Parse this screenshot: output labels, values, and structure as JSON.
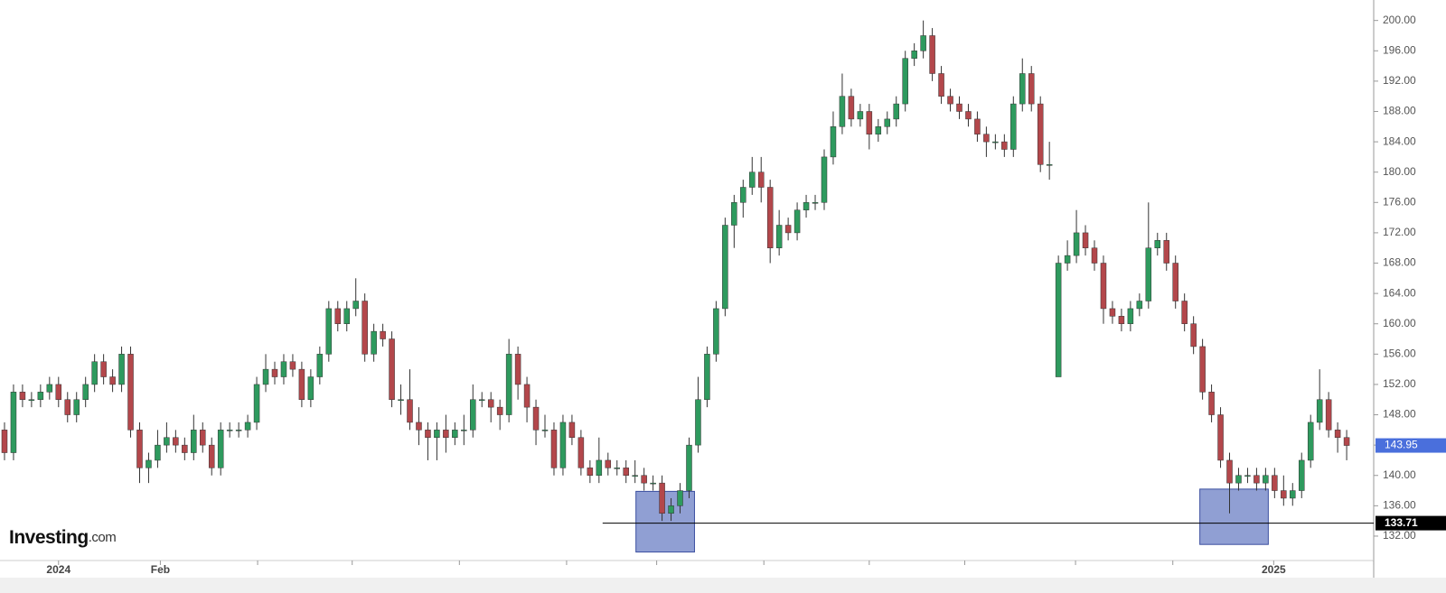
{
  "chart_data": {
    "type": "candlestick",
    "up_color": "#2e9a5e",
    "down_color": "#b3474b",
    "xlim": [
      0,
      152
    ],
    "xticks": [
      {
        "value": 6.5,
        "label": "2024"
      },
      {
        "value": 17.8,
        "label": "Feb"
      },
      {
        "value": 28.6,
        "label": null
      },
      {
        "value": 39.1,
        "label": null
      },
      {
        "value": 51,
        "label": null
      },
      {
        "value": 62.9,
        "label": null
      },
      {
        "value": 72.9,
        "label": null
      },
      {
        "value": 84.8,
        "label": null
      },
      {
        "value": 96.5,
        "label": null
      },
      {
        "value": 107.1,
        "label": null
      },
      {
        "value": 119.4,
        "label": null
      },
      {
        "value": 130.2,
        "label": null
      },
      {
        "value": 141.4,
        "label": "2025"
      },
      {
        "value": 152.5,
        "label": null
      }
    ],
    "ylim": [
      128.9,
      202.7
    ],
    "yticks": [
      {
        "value": 132,
        "label": "132.00"
      },
      {
        "value": 136,
        "label": "136.00"
      },
      {
        "value": 140,
        "label": "140.00"
      },
      {
        "value": 144,
        "label": "144.00"
      },
      {
        "value": 148,
        "label": "148.00"
      },
      {
        "value": 152,
        "label": "152.00"
      },
      {
        "value": 156,
        "label": "156.00"
      },
      {
        "value": 160,
        "label": "160.00"
      },
      {
        "value": 164,
        "label": "164.00"
      },
      {
        "value": 168,
        "label": "168.00"
      },
      {
        "value": 172,
        "label": "172.00"
      },
      {
        "value": 176,
        "label": "176.00"
      },
      {
        "value": 180,
        "label": "180.00"
      },
      {
        "value": 184,
        "label": "184.00"
      },
      {
        "value": 188,
        "label": "188.00"
      },
      {
        "value": 192,
        "label": "192.00"
      },
      {
        "value": 196,
        "label": "196.00"
      },
      {
        "value": 200,
        "label": "200.00"
      }
    ],
    "open": [
      146,
      143,
      151,
      150,
      150,
      151,
      152,
      150,
      148,
      150,
      152,
      155,
      153,
      152,
      156,
      146,
      141,
      142,
      144,
      145,
      144,
      143,
      146,
      144,
      141,
      146,
      146,
      146,
      147,
      152,
      154,
      153,
      155,
      154,
      150,
      153,
      156,
      162,
      160,
      162,
      163,
      156,
      159,
      158,
      150,
      150,
      147,
      146,
      145,
      146,
      145,
      146,
      146,
      150,
      150,
      149,
      148,
      156,
      152,
      149,
      146,
      146,
      141,
      147,
      145,
      141,
      140,
      142,
      141,
      141,
      140,
      140,
      139,
      139,
      135,
      136,
      138,
      144,
      150,
      156,
      162,
      173,
      176,
      178,
      180,
      178,
      170,
      173,
      172,
      175,
      176,
      176,
      182,
      186,
      190,
      187,
      188,
      185,
      186,
      187,
      189,
      195,
      196,
      198,
      193,
      190,
      189,
      188,
      187,
      185,
      184,
      184,
      183,
      189,
      193,
      189,
      181,
      153,
      168,
      169,
      172,
      170,
      168,
      162,
      161,
      160,
      162,
      163,
      170,
      171,
      168,
      163,
      160,
      157,
      151,
      148,
      142,
      139,
      140,
      140,
      139,
      140,
      138,
      137,
      138,
      142,
      147,
      150,
      146,
      145
    ],
    "high": [
      147,
      152,
      152,
      151,
      152,
      153,
      153,
      151,
      151,
      153,
      156,
      156,
      154,
      157,
      157,
      147,
      143,
      146,
      147,
      146,
      145,
      148,
      147,
      145,
      147,
      147,
      147,
      148,
      153,
      156,
      155,
      156,
      156,
      155,
      154,
      157,
      163,
      163,
      163,
      166,
      164,
      160,
      160,
      159,
      152,
      154,
      149,
      147,
      147,
      148,
      147,
      148,
      152,
      151,
      151,
      150,
      158,
      157,
      153,
      150,
      148,
      147,
      148,
      148,
      146,
      142,
      145,
      143,
      142,
      142,
      142,
      141,
      140,
      140,
      137,
      139,
      145,
      153,
      157,
      163,
      174,
      177,
      179,
      182,
      182,
      179,
      175,
      174,
      176,
      177,
      177,
      183,
      188,
      193,
      191,
      189,
      189,
      187,
      188,
      190,
      196,
      197,
      200,
      199,
      194,
      191,
      190,
      189,
      188,
      186,
      185,
      185,
      190,
      195,
      194,
      190,
      184,
      169,
      171,
      175,
      173,
      171,
      169,
      163,
      162,
      163,
      164,
      176,
      172,
      172,
      169,
      164,
      161,
      158,
      152,
      149,
      143,
      141,
      141,
      141,
      141,
      141,
      140,
      139,
      143,
      148,
      154,
      151,
      147,
      146
    ],
    "low": [
      142,
      142,
      149,
      149,
      149,
      150,
      149,
      147,
      147,
      149,
      151,
      152,
      151,
      151,
      145,
      139,
      139,
      141,
      143,
      143,
      142,
      142,
      143,
      140,
      140,
      145,
      145,
      145,
      146,
      151,
      152,
      152,
      153,
      149,
      149,
      152,
      155,
      159,
      159,
      161,
      155,
      155,
      157,
      149,
      148,
      146,
      144,
      142,
      142,
      143,
      144,
      144,
      145,
      149,
      147,
      146,
      147,
      150,
      147,
      144,
      145,
      140,
      140,
      144,
      140,
      139,
      139,
      140,
      140,
      139,
      139,
      138,
      138,
      134,
      134,
      135,
      137,
      143,
      149,
      155,
      161,
      170,
      174,
      177,
      176,
      168,
      169,
      171,
      171,
      174,
      175,
      175,
      181,
      185,
      186,
      186,
      183,
      184,
      185,
      186,
      188,
      194,
      195,
      192,
      189,
      188,
      187,
      186,
      184,
      182,
      183,
      182,
      182,
      188,
      188,
      180,
      179,
      153,
      167,
      168,
      169,
      167,
      160,
      160,
      159,
      159,
      161,
      162,
      169,
      167,
      162,
      159,
      156,
      150,
      147,
      141,
      135,
      138,
      139,
      138,
      138,
      137,
      136,
      136,
      137,
      141,
      146,
      145,
      143,
      142
    ],
    "close": [
      143,
      151,
      150,
      150,
      151,
      152,
      150,
      148,
      150,
      152,
      155,
      153,
      152,
      156,
      146,
      141,
      142,
      144,
      145,
      144,
      143,
      146,
      144,
      141,
      146,
      146,
      146,
      147,
      152,
      154,
      153,
      155,
      154,
      150,
      153,
      156,
      162,
      160,
      162,
      163,
      156,
      159,
      158,
      150,
      150,
      147,
      146,
      145,
      146,
      145,
      146,
      146,
      150,
      150,
      149,
      148,
      156,
      152,
      149,
      146,
      146,
      141,
      147,
      145,
      141,
      140,
      142,
      141,
      141,
      140,
      140,
      139,
      139,
      135,
      136,
      138,
      144,
      150,
      156,
      162,
      173,
      176,
      178,
      180,
      178,
      170,
      173,
      172,
      175,
      176,
      176,
      182,
      186,
      190,
      187,
      188,
      185,
      186,
      187,
      189,
      195,
      196,
      198,
      193,
      190,
      189,
      188,
      187,
      185,
      184,
      184,
      183,
      189,
      193,
      189,
      181,
      181,
      168,
      169,
      172,
      170,
      168,
      162,
      161,
      160,
      162,
      163,
      170,
      171,
      168,
      163,
      160,
      157,
      151,
      148,
      142,
      139,
      140,
      140,
      139,
      140,
      138,
      137,
      138,
      142,
      147,
      150,
      146,
      145,
      143.95
    ],
    "last_price": 143.95,
    "last_price_color": "#4a6fdc",
    "level": {
      "value": 133.71,
      "x_start": 66.9,
      "color": "#000000"
    },
    "boxes": [
      {
        "x": [
          70.6,
          77.1
        ],
        "y": [
          129.9,
          137.9
        ]
      },
      {
        "x": [
          133.2,
          140.8
        ],
        "y": [
          130.9,
          138.2
        ]
      }
    ],
    "box_color": "#6b7fc4",
    "logo_name": "Investing",
    "logo_suffix": ".com"
  }
}
